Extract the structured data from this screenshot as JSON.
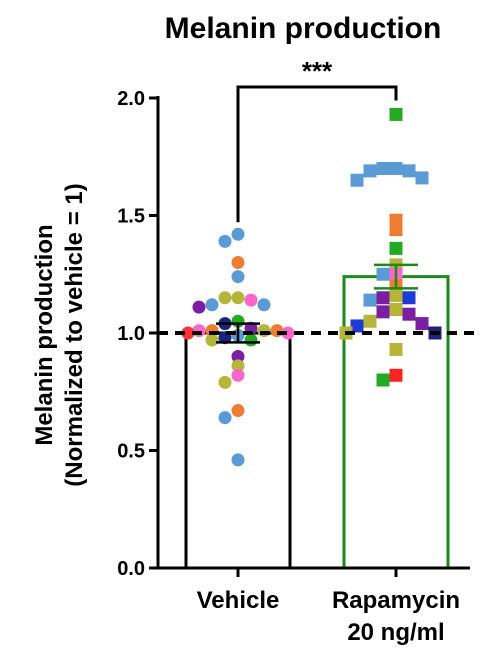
{
  "chart_data": {
    "type": "bar",
    "title": "Melanin production",
    "ylabel_line1": "Melanin production",
    "ylabel_line2": "(Normalized to  vehicle = 1)",
    "ylim": [
      0.0,
      2.0
    ],
    "yticks": [
      "0.0",
      "0.5",
      "1.0",
      "1.5",
      "2.0"
    ],
    "reference_line": 1.0,
    "significance": "***",
    "categories": [
      {
        "label_lines": [
          "Vehicle"
        ],
        "mean": 1.0,
        "sem": 0.04,
        "bar_color": "#000000",
        "marker": "circle"
      },
      {
        "label_lines": [
          "Rapamycin",
          "20 ng/ml"
        ],
        "mean": 1.24,
        "sem": 0.05,
        "bar_color": "#1a8a1a",
        "marker": "square"
      }
    ],
    "points": [
      [
        {
          "y": 1.42,
          "c": "#5b9bd5"
        },
        {
          "y": 1.39,
          "c": "#5b9bd5"
        },
        {
          "y": 1.3,
          "c": "#ed7d31"
        },
        {
          "y": 1.24,
          "c": "#5b9bd5"
        },
        {
          "y": 1.15,
          "c": "#b5b53a"
        },
        {
          "y": 1.15,
          "c": "#b5b53a"
        },
        {
          "y": 1.14,
          "c": "#ff66cc"
        },
        {
          "y": 1.12,
          "c": "#5b9bd5"
        },
        {
          "y": 1.12,
          "c": "#5b9bd5"
        },
        {
          "y": 1.11,
          "c": "#7b1fa2"
        },
        {
          "y": 1.05,
          "c": "#22aa22"
        },
        {
          "y": 1.04,
          "c": "#1a237e"
        },
        {
          "y": 1.02,
          "c": "#7b1fa2"
        },
        {
          "y": 1.01,
          "c": "#ed7d31"
        },
        {
          "y": 1.01,
          "c": "#b5b53a"
        },
        {
          "y": 1.01,
          "c": "#ff66cc"
        },
        {
          "y": 1.01,
          "c": "#ed7d31"
        },
        {
          "y": 1.0,
          "c": "#ff3333"
        },
        {
          "y": 1.0,
          "c": "#ff66cc"
        },
        {
          "y": 0.99,
          "c": "#5b9bd5"
        },
        {
          "y": 0.98,
          "c": "#1a237e"
        },
        {
          "y": 0.97,
          "c": "#22aa22"
        },
        {
          "y": 0.97,
          "c": "#b5b53a"
        },
        {
          "y": 0.9,
          "c": "#7b1fa2"
        },
        {
          "y": 0.86,
          "c": "#b5b53a"
        },
        {
          "y": 0.82,
          "c": "#ff66cc"
        },
        {
          "y": 0.79,
          "c": "#b5b53a"
        },
        {
          "y": 0.67,
          "c": "#ed7d31"
        },
        {
          "y": 0.64,
          "c": "#5b9bd5"
        },
        {
          "y": 0.46,
          "c": "#5b9bd5"
        }
      ],
      [
        {
          "y": 1.93,
          "c": "#22aa22"
        },
        {
          "y": 1.7,
          "c": "#5b9bd5"
        },
        {
          "y": 1.7,
          "c": "#5b9bd5"
        },
        {
          "y": 1.69,
          "c": "#5b9bd5"
        },
        {
          "y": 1.69,
          "c": "#5b9bd5"
        },
        {
          "y": 1.66,
          "c": "#5b9bd5"
        },
        {
          "y": 1.65,
          "c": "#5b9bd5"
        },
        {
          "y": 1.48,
          "c": "#ed7d31"
        },
        {
          "y": 1.44,
          "c": "#ed7d31"
        },
        {
          "y": 1.36,
          "c": "#22aa22"
        },
        {
          "y": 1.29,
          "c": "#b5b53a"
        },
        {
          "y": 1.25,
          "c": "#ff66cc"
        },
        {
          "y": 1.25,
          "c": "#5b9bd5"
        },
        {
          "y": 1.2,
          "c": "#ed7d31"
        },
        {
          "y": 1.16,
          "c": "#b5b53a"
        },
        {
          "y": 1.15,
          "c": "#7b1fa2"
        },
        {
          "y": 1.15,
          "c": "#1f3bd6"
        },
        {
          "y": 1.14,
          "c": "#5b9bd5"
        },
        {
          "y": 1.1,
          "c": "#b5b53a"
        },
        {
          "y": 1.09,
          "c": "#7b1fa2"
        },
        {
          "y": 1.08,
          "c": "#7b1fa2"
        },
        {
          "y": 1.05,
          "c": "#b5b53a"
        },
        {
          "y": 1.04,
          "c": "#7b1fa2"
        },
        {
          "y": 1.03,
          "c": "#1f3bd6"
        },
        {
          "y": 1.0,
          "c": "#1a237e"
        },
        {
          "y": 1.0,
          "c": "#b5b53a"
        },
        {
          "y": 0.93,
          "c": "#b5b53a"
        },
        {
          "y": 0.82,
          "c": "#ff2222"
        },
        {
          "y": 0.8,
          "c": "#22aa22"
        }
      ]
    ]
  }
}
